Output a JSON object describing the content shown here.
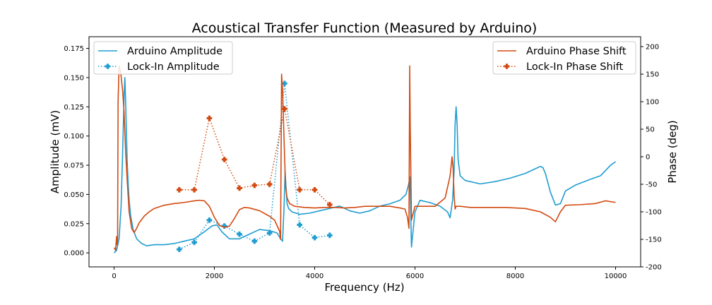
{
  "chart_data": {
    "type": "line",
    "title": "Acoustical Transfer Function (Measured by Arduino)",
    "xlabel": "Frequency (Hz)",
    "ylabel": "Amplitude (mV)",
    "y2label": "Phase (deg)",
    "xlim": [
      -500,
      10500
    ],
    "ylim": [
      -0.012,
      0.185
    ],
    "y2lim": [
      -200,
      218
    ],
    "x_ticks": [
      0,
      2000,
      4000,
      6000,
      8000,
      10000
    ],
    "y_ticks": [
      0.0,
      0.025,
      0.05,
      0.075,
      0.1,
      0.125,
      0.15,
      0.175
    ],
    "y_tick_labels": [
      "0.000",
      "0.025",
      "0.050",
      "0.075",
      "0.100",
      "0.125",
      "0.150",
      "0.175"
    ],
    "y2_ticks": [
      -200,
      -150,
      -100,
      -50,
      0,
      50,
      100,
      150,
      200
    ],
    "grid": false,
    "colors": {
      "amplitude": "#1f9dd0",
      "phase": "#d24a10"
    },
    "legends": [
      {
        "placement": "upper-left",
        "entries": [
          "Arduino Amplitude",
          "Lock-In Amplitude"
        ]
      },
      {
        "placement": "upper-right",
        "entries": [
          "Arduino Phase Shift",
          "Lock-In Phase Shift"
        ]
      }
    ],
    "series": [
      {
        "name": "Arduino Amplitude",
        "axis": "left",
        "style": "solid",
        "x": [
          0,
          50,
          100,
          140,
          170,
          200,
          215,
          230,
          245,
          260,
          280,
          300,
          330,
          380,
          450,
          550,
          650,
          800,
          1000,
          1200,
          1400,
          1600,
          1800,
          1950,
          2050,
          2150,
          2300,
          2500,
          2700,
          2900,
          3100,
          3250,
          3320,
          3360,
          3390,
          3410,
          3430,
          3450,
          3480,
          3550,
          3700,
          3900,
          4100,
          4300,
          4500,
          4700,
          4900,
          5100,
          5300,
          5500,
          5700,
          5820,
          5870,
          5900,
          5930,
          6000,
          6100,
          6300,
          6500,
          6650,
          6700,
          6750,
          6780,
          6800,
          6820,
          6840,
          6860,
          6900,
          7000,
          7300,
          7600,
          7900,
          8200,
          8400,
          8500,
          8550,
          8600,
          8650,
          8700,
          8800,
          8900,
          9000,
          9200,
          9500,
          9700,
          9900,
          10000
        ],
        "y": [
          0.0,
          0.002,
          0.012,
          0.04,
          0.085,
          0.135,
          0.15,
          0.13,
          0.105,
          0.08,
          0.06,
          0.045,
          0.032,
          0.02,
          0.012,
          0.008,
          0.006,
          0.007,
          0.007,
          0.008,
          0.01,
          0.012,
          0.018,
          0.023,
          0.024,
          0.018,
          0.012,
          0.012,
          0.016,
          0.02,
          0.019,
          0.017,
          0.012,
          0.01,
          0.04,
          0.07,
          0.055,
          0.042,
          0.038,
          0.035,
          0.033,
          0.034,
          0.036,
          0.038,
          0.04,
          0.036,
          0.034,
          0.036,
          0.04,
          0.042,
          0.045,
          0.05,
          0.058,
          0.065,
          0.005,
          0.035,
          0.045,
          0.043,
          0.04,
          0.035,
          0.03,
          0.045,
          0.07,
          0.11,
          0.125,
          0.11,
          0.08,
          0.066,
          0.062,
          0.059,
          0.061,
          0.064,
          0.068,
          0.072,
          0.074,
          0.073,
          0.068,
          0.06,
          0.052,
          0.041,
          0.042,
          0.053,
          0.058,
          0.063,
          0.066,
          0.075,
          0.078
        ]
      },
      {
        "name": "Lock-In Amplitude",
        "axis": "left",
        "style": "dotted-markers",
        "x": [
          1300,
          1600,
          1900,
          2200,
          2500,
          2800,
          3100,
          3400,
          3700,
          4000,
          4300
        ],
        "y": [
          0.003,
          0.009,
          0.028,
          0.023,
          0.016,
          0.01,
          0.017,
          0.145,
          0.024,
          0.013,
          0.015
        ]
      },
      {
        "name": "Arduino Phase Shift",
        "axis": "right",
        "style": "solid",
        "x": [
          0,
          30,
          50,
          60,
          70,
          80,
          100,
          130,
          170,
          200,
          230,
          260,
          300,
          350,
          400,
          450,
          500,
          600,
          700,
          800,
          1000,
          1200,
          1400,
          1600,
          1700,
          1800,
          1900,
          2000,
          2100,
          2200,
          2300,
          2400,
          2500,
          2600,
          2700,
          2900,
          3100,
          3200,
          3250,
          3300,
          3320,
          3340,
          3360,
          3380,
          3400,
          3420,
          3450,
          3500,
          3600,
          3800,
          4000,
          4200,
          4400,
          4600,
          4800,
          5000,
          5200,
          5500,
          5700,
          5800,
          5850,
          5880,
          5895,
          5905,
          5930,
          6000,
          6200,
          6400,
          6600,
          6700,
          6740,
          6760,
          6780,
          6800,
          6820,
          6900,
          7100,
          7400,
          7800,
          8200,
          8500,
          8700,
          8800,
          8900,
          9000,
          9300,
          9600,
          9800,
          10000
        ],
        "y": [
          -165,
          -170,
          -145,
          -160,
          -150,
          100,
          165,
          155,
          120,
          80,
          10,
          -40,
          -100,
          -130,
          -138,
          -130,
          -120,
          -108,
          -100,
          -94,
          -88,
          -85,
          -83,
          -80,
          -79,
          -80,
          -90,
          -110,
          -125,
          -128,
          -126,
          -112,
          -96,
          -92,
          -93,
          -98,
          -108,
          -115,
          -125,
          -135,
          -150,
          150,
          120,
          60,
          0,
          -55,
          -75,
          -85,
          -90,
          -92,
          -93,
          -92,
          -92,
          -93,
          -92,
          -90,
          -90,
          -90,
          -93,
          -95,
          -110,
          -130,
          165,
          60,
          -115,
          -90,
          -90,
          -90,
          -75,
          -35,
          0,
          -20,
          -70,
          -95,
          -90,
          -90,
          -92,
          -92,
          -92,
          -94,
          -100,
          -110,
          -118,
          -100,
          -88,
          -87,
          -85,
          -80,
          -83
        ]
      },
      {
        "name": "Lock-In Phase Shift",
        "axis": "right",
        "style": "dotted-markers",
        "x": [
          1300,
          1600,
          1900,
          2200,
          2500,
          2800,
          3100,
          3400,
          3700,
          4000,
          4300
        ],
        "y": [
          -60,
          -60,
          70,
          -5,
          -57,
          -52,
          -50,
          87,
          -60,
          -60,
          -87
        ]
      }
    ]
  }
}
